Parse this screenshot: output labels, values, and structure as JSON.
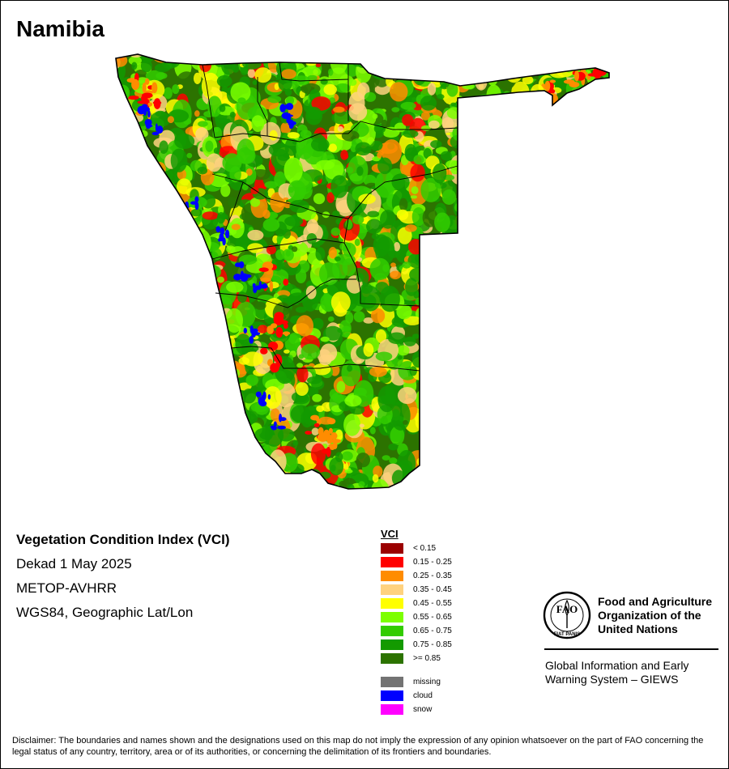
{
  "map": {
    "title": "Namibia"
  },
  "info": {
    "index_name": "Vegetation Condition Index (VCI)",
    "period": "Dekad 1 May 2025",
    "sensor": "METOP-AVHRR",
    "projection": "WGS84, Geographic Lat/Lon"
  },
  "legend": {
    "title": "VCI",
    "classes": [
      {
        "label": "< 0.15",
        "color": "#9b0000"
      },
      {
        "label": "0.15 - 0.25",
        "color": "#ff0000"
      },
      {
        "label": "0.25 - 0.35",
        "color": "#ff8c00"
      },
      {
        "label": "0.35 - 0.45",
        "color": "#ffd27f"
      },
      {
        "label": "0.45 - 0.55",
        "color": "#ffff00"
      },
      {
        "label": "0.55 - 0.65",
        "color": "#7cff00"
      },
      {
        "label": "0.65 - 0.75",
        "color": "#33cc00"
      },
      {
        "label": "0.75 - 0.85",
        "color": "#139a00"
      },
      {
        "label": ">= 0.85",
        "color": "#2c7300"
      }
    ],
    "special": [
      {
        "label": "missing",
        "color": "#737373"
      },
      {
        "label": "cloud",
        "color": "#0000ff"
      },
      {
        "label": "snow",
        "color": "#ff00ff"
      }
    ]
  },
  "organization": {
    "line1": "Food and Agriculture",
    "line2": "Organization of the",
    "line3": "United Nations",
    "logo_text": "FAO",
    "logo_motto": "FIAT PANIS",
    "system_line1": "Global Information and Early",
    "system_line2": "Warning System – GIEWS"
  },
  "disclaimer": "Disclaimer: The boundaries and names shown and the designations used on this map do not imply the expression of any opinion whatsoever on the part of FAO concerning the legal status of any country, territory, area or of its authorities, or concerning the delimitation of its frontiers and boundaries."
}
